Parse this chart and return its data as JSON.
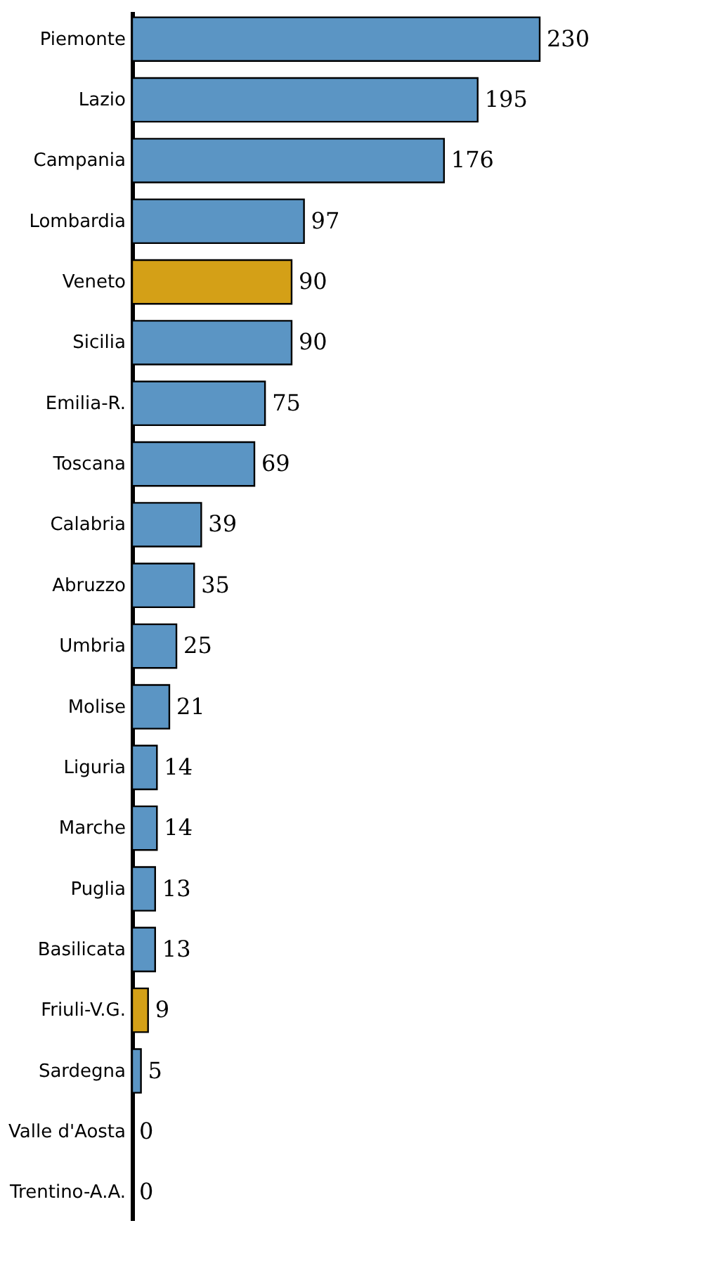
{
  "chart_data": {
    "type": "bar",
    "orientation": "horizontal",
    "data_labels": true,
    "categories": [
      "Piemonte",
      "Lazio",
      "Campania",
      "Lombardia",
      "Veneto",
      "Sicilia",
      "Emilia-R.",
      "Toscana",
      "Calabria",
      "Abruzzo",
      "Umbria",
      "Molise",
      "Liguria",
      "Marche",
      "Puglia",
      "Basilicata",
      "Friuli-V.G.",
      "Sardegna",
      "Valle d'Aosta",
      "Trentino-A.A."
    ],
    "values": [
      230,
      195,
      176,
      97,
      90,
      90,
      75,
      69,
      39,
      35,
      25,
      21,
      14,
      14,
      13,
      13,
      9,
      5,
      0,
      0
    ],
    "colors": [
      "#5b95c4",
      "#5b95c4",
      "#5b95c4",
      "#5b95c4",
      "#d4a017",
      "#5b95c4",
      "#5b95c4",
      "#5b95c4",
      "#5b95c4",
      "#5b95c4",
      "#5b95c4",
      "#5b95c4",
      "#5b95c4",
      "#5b95c4",
      "#5b95c4",
      "#5b95c4",
      "#d4a017",
      "#5b95c4",
      "#5b95c4",
      "#5b95c4"
    ]
  }
}
